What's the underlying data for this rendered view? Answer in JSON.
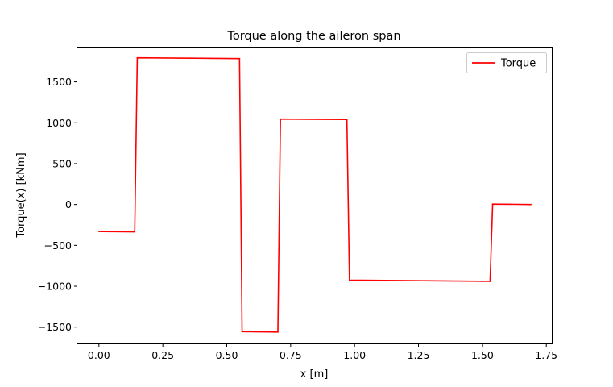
{
  "chart_data": {
    "type": "line",
    "title": "Torque along the aileron span",
    "xlabel": "x [m]",
    "ylabel": "Torque(x) [kNm]",
    "xlim": [
      -0.0845,
      1.7745
    ],
    "ylim": [
      -1710,
      1920
    ],
    "xticks": [
      0.0,
      0.25,
      0.5,
      0.75,
      1.0,
      1.25,
      1.5,
      1.75
    ],
    "xtick_labels": [
      "0.00",
      "0.25",
      "0.50",
      "0.75",
      "1.00",
      "1.25",
      "1.50",
      "1.75"
    ],
    "yticks": [
      -1500,
      -1000,
      -500,
      0,
      500,
      1000,
      1500
    ],
    "ytick_labels": [
      "−1500",
      "−1000",
      "−500",
      "0",
      "500",
      "1000",
      "1500"
    ],
    "grid": false,
    "legend_position": "top-right",
    "series": [
      {
        "name": "Torque",
        "color": "#ff0000",
        "x": [
          0.0,
          0.14,
          0.15,
          0.55,
          0.56,
          0.7,
          0.71,
          0.97,
          0.98,
          1.53,
          1.54,
          1.69
        ],
        "y": [
          -330,
          -335,
          1795,
          1785,
          -1555,
          -1560,
          1045,
          1040,
          -925,
          -940,
          5,
          0
        ]
      }
    ]
  }
}
